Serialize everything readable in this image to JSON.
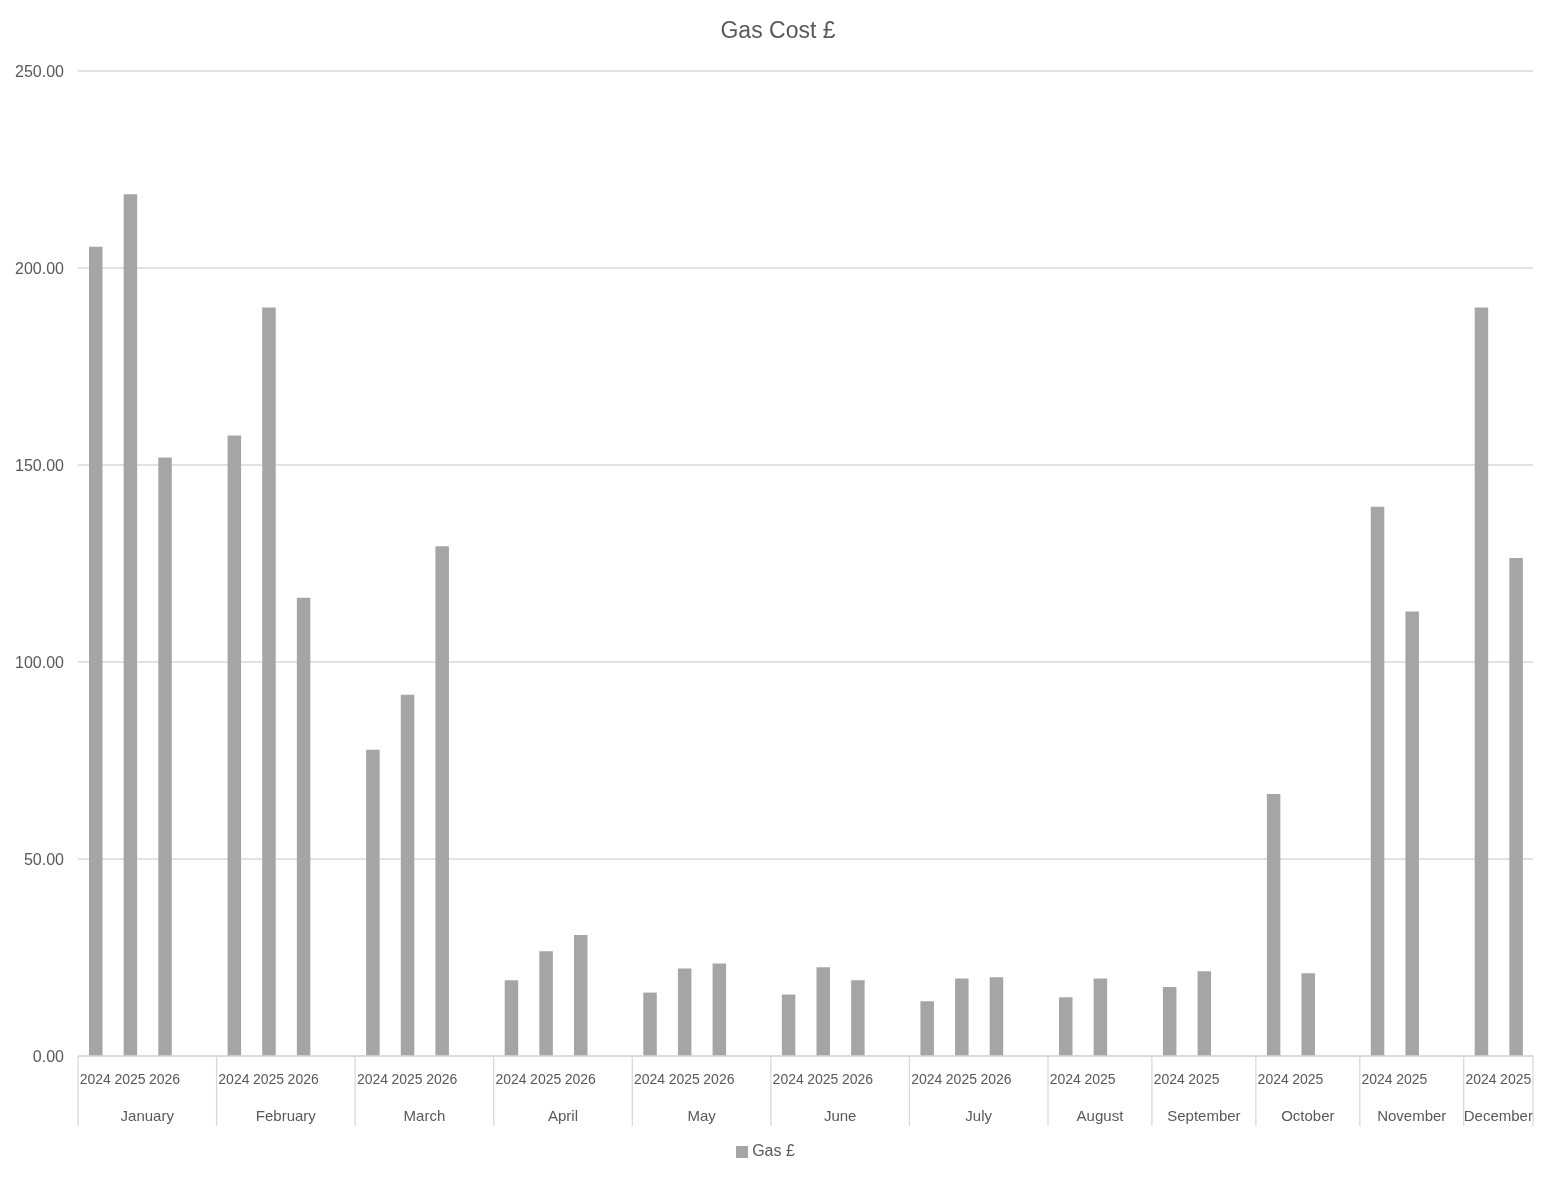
{
  "chart_data": {
    "type": "bar",
    "title": "Gas Cost £",
    "categories": [
      "2024",
      "2025",
      "2026",
      null,
      "2024",
      "2025",
      "2026",
      null,
      "2024",
      "2025",
      "2026",
      null,
      "2024",
      "2025",
      "2026",
      null,
      "2024",
      "2025",
      "2026",
      null,
      "2024",
      "2025",
      "2026",
      null,
      "2024",
      "2025",
      "2026",
      null,
      "2024",
      "2025",
      null,
      "2024",
      "2025",
      null,
      "2024",
      "2025",
      null,
      "2024",
      "2025",
      null,
      "2024",
      "2025"
    ],
    "series": [
      {
        "name": "Gas £",
        "color": "#a5a5a5",
        "values": [
          205.4,
          218.7,
          151.9,
          null,
          157.5,
          190.0,
          116.3,
          null,
          77.7,
          91.7,
          129.4,
          null,
          19.2,
          26.6,
          30.7,
          null,
          16.1,
          22.2,
          23.5,
          null,
          15.6,
          22.5,
          19.2,
          null,
          13.9,
          19.7,
          20.0,
          null,
          14.9,
          19.7,
          null,
          17.5,
          21.5,
          null,
          66.5,
          21.0,
          null,
          139.4,
          112.8,
          null,
          190.0,
          126.4
        ]
      }
    ],
    "ylim": [
      0,
      250
    ],
    "yticks": [
      {
        "value": 0,
        "label": "0.00"
      },
      {
        "value": 50,
        "label": "50.00"
      },
      {
        "value": 100,
        "label": "100.00"
      },
      {
        "value": 150,
        "label": "150.00"
      },
      {
        "value": 200,
        "label": "200.00"
      },
      {
        "value": 250,
        "label": "250.00"
      }
    ],
    "grid": "y",
    "legend": "bottom",
    "annotations": [
      "January",
      "February",
      "March",
      "April",
      "May",
      "June",
      "July",
      "August",
      "September",
      "October",
      "November",
      "December"
    ]
  }
}
